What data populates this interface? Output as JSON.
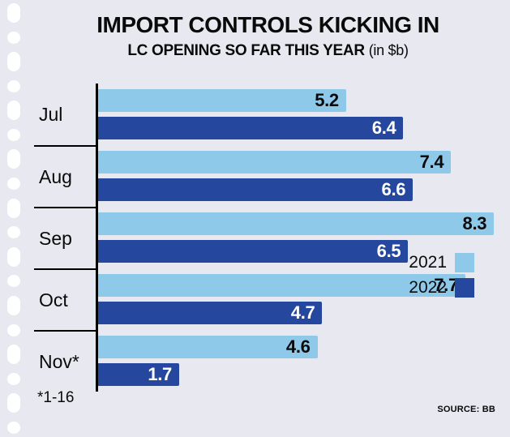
{
  "header": {
    "title": "IMPORT CONTROLS KICKING IN",
    "subtitle": "LC OPENING SO FAR THIS YEAR",
    "unit": "(in $b)"
  },
  "footnote": "*1-16",
  "source": "SOURCE: BB",
  "legend": {
    "items": [
      {
        "label": "2021",
        "color": "#8fc9ea"
      },
      {
        "label": "2022",
        "color": "#25479d"
      }
    ]
  },
  "chart_data": {
    "type": "bar",
    "orientation": "horizontal",
    "title": "IMPORT CONTROLS KICKING IN",
    "subtitle": "LC OPENING SO FAR THIS YEAR (in $b)",
    "categories": [
      "Jul",
      "Aug",
      "Sep",
      "Oct",
      "Nov*"
    ],
    "series": [
      {
        "name": "2021",
        "color": "#8fc9ea",
        "values": [
          5.2,
          7.4,
          8.3,
          7.7,
          4.6
        ]
      },
      {
        "name": "2022",
        "color": "#25479d",
        "values": [
          6.4,
          6.6,
          6.5,
          4.7,
          1.7
        ]
      }
    ],
    "xlim": [
      0,
      8.5
    ],
    "value_labels": true,
    "legend_position": "bottom-right",
    "footnote": "*1-16",
    "source": "BB"
  }
}
